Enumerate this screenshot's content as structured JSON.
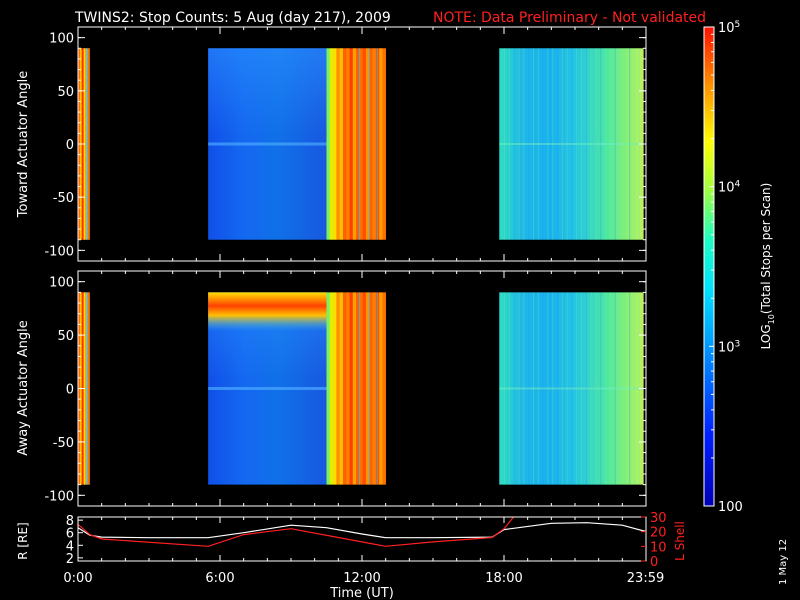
{
  "title": {
    "main": "TWINS2: Stop Counts:  5 Aug (day 217), 2009",
    "note": "NOTE: Data Preliminary - Not validated",
    "note_color": "#ff2020"
  },
  "footer_stamp": "1 May 12",
  "chart_data": [
    {
      "type": "heatmap",
      "ylabel": "Toward Actuator Angle",
      "ylim": [
        -110,
        110
      ],
      "yticks": [
        "100",
        "50",
        "0",
        "-50",
        "-100"
      ],
      "xlim_hours": [
        0,
        24
      ],
      "data_blocks_hours": [
        [
          0.0,
          0.5
        ],
        [
          5.5,
          13.0
        ],
        [
          17.8,
          23.9
        ]
      ]
    },
    {
      "type": "heatmap",
      "ylabel": "Away Actuator Angle",
      "ylim": [
        -110,
        110
      ],
      "yticks": [
        "100",
        "50",
        "0",
        "-50",
        "-100"
      ],
      "xlim_hours": [
        0,
        24
      ],
      "data_blocks_hours": [
        [
          0.0,
          0.5
        ],
        [
          5.5,
          13.0
        ],
        [
          17.8,
          23.9
        ]
      ]
    },
    {
      "type": "line",
      "xlabel": "Time (UT)",
      "xtick_labels": [
        "0:00",
        "6:00",
        "12:00",
        "18:00",
        "23:59"
      ],
      "xtick_hours": [
        0,
        6,
        12,
        18,
        23.98
      ],
      "left_axis": {
        "label": "R [RE]",
        "ylim": [
          1.5,
          8.5
        ],
        "ticks": [
          "8",
          "6",
          "4",
          "2"
        ]
      },
      "right_axis": {
        "label": "L Shell",
        "ylim": [
          0,
          30
        ],
        "ticks": [
          "30",
          "20",
          "10",
          "0"
        ],
        "color": "#ff2020"
      },
      "series": [
        {
          "axis": "left",
          "color": "#ffffff",
          "x": [
            0,
            0.5,
            1,
            3,
            5.5,
            7,
            9,
            10.5,
            12,
            13,
            15,
            17.5,
            18,
            20,
            21.5,
            23,
            24
          ],
          "y": [
            6.8,
            5.6,
            5.3,
            5.2,
            5.2,
            6.0,
            7.2,
            6.8,
            5.8,
            5.2,
            5.2,
            5.3,
            6.5,
            7.5,
            7.6,
            7.2,
            6.2
          ]
        },
        {
          "axis": "right",
          "color": "#ff2020",
          "x": [
            0,
            0.5,
            1,
            5.5,
            7,
            9,
            11,
            13,
            15,
            17.5,
            18,
            18.4
          ],
          "y": [
            25,
            18,
            15,
            10,
            18,
            22,
            16,
            10,
            13,
            16,
            22,
            30
          ]
        }
      ]
    },
    {
      "type": "colorbar",
      "ylabel": "LOG10(Total Stops per Scan)",
      "scale": "log",
      "range": [
        100,
        100000
      ],
      "tick_labels": [
        "100",
        "10^3",
        "10^4",
        "10^5"
      ],
      "tick_values": [
        100,
        1000,
        10000,
        100000
      ]
    }
  ]
}
